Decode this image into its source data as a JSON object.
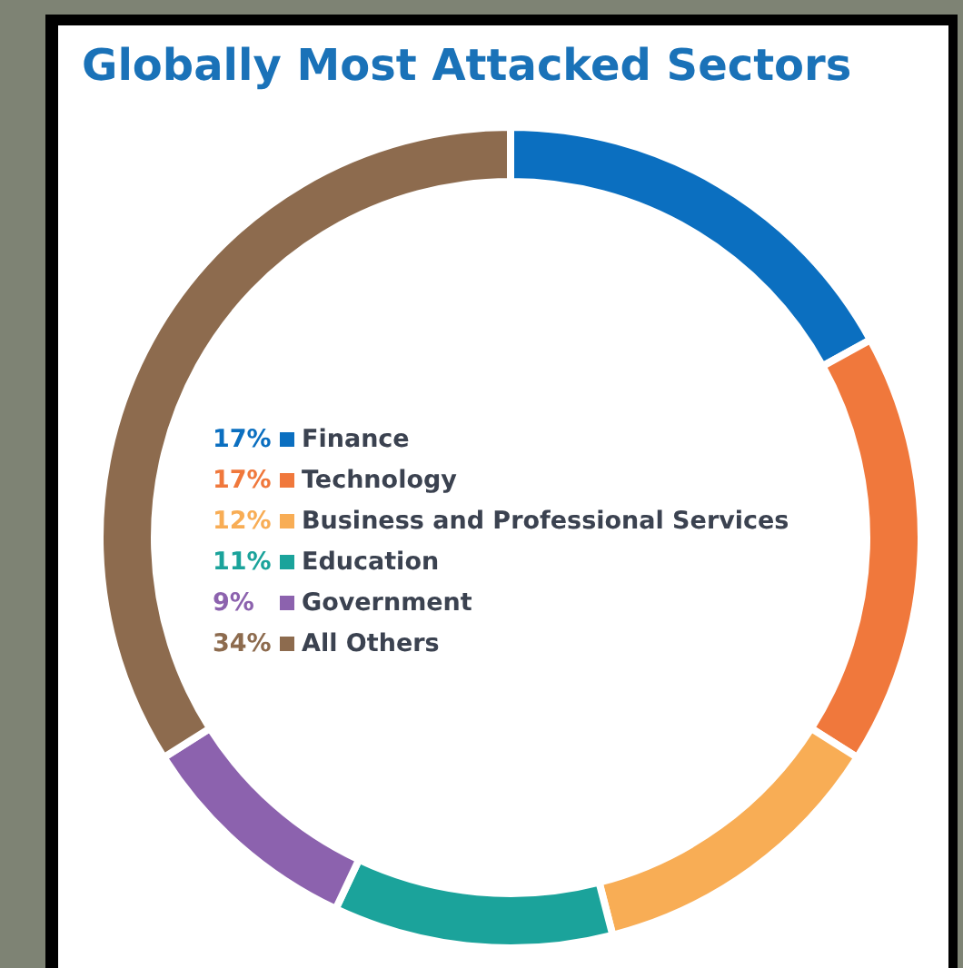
{
  "chart_data": {
    "type": "donut",
    "title": "Globally Most Attacked Sectors",
    "categories": [
      "Finance",
      "Technology",
      "Business and Professional Services",
      "Education",
      "Government",
      "All Others"
    ],
    "values": [
      17,
      17,
      12,
      11,
      9,
      34
    ],
    "value_labels": [
      "17%",
      "17%",
      "12%",
      "11%",
      "9%",
      "34%"
    ],
    "colors": [
      "#0b6fc0",
      "#f0783c",
      "#f8ad55",
      "#1ba39b",
      "#8c62ae",
      "#8d6b4e"
    ],
    "legend": "center"
  }
}
